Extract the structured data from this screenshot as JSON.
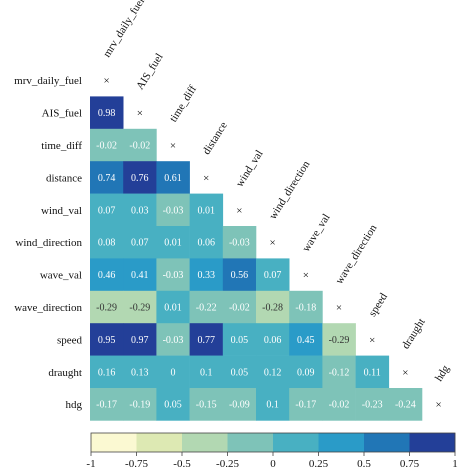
{
  "chart_data": {
    "type": "heatmap",
    "variables": [
      "mrv_daily_fuel",
      "AIS_fuel",
      "time_diff",
      "distance",
      "wind_val",
      "wind_direction",
      "wave_val",
      "wave_direction",
      "speed",
      "draught",
      "hdg"
    ],
    "lower_triangle": [
      [],
      [
        0.98
      ],
      [
        -0.02,
        -0.02
      ],
      [
        0.74,
        0.76,
        0.61
      ],
      [
        0.07,
        0.03,
        -0.03,
        0.01
      ],
      [
        0.08,
        0.07,
        0.01,
        0.06,
        -0.03
      ],
      [
        0.46,
        0.41,
        -0.03,
        0.33,
        0.56,
        0.07
      ],
      [
        -0.29,
        -0.29,
        0.01,
        -0.22,
        -0.02,
        -0.28,
        -0.18
      ],
      [
        0.95,
        0.97,
        -0.03,
        0.77,
        0.05,
        0.06,
        0.45,
        -0.29
      ],
      [
        0.16,
        0.13,
        0,
        0.1,
        0.05,
        0.12,
        0.09,
        -0.12,
        0.11
      ],
      [
        -0.17,
        -0.19,
        0.05,
        -0.15,
        -0.09,
        0.1,
        -0.17,
        -0.02,
        -0.23,
        -0.24
      ]
    ],
    "diagonal_marker": "×",
    "colorbar": {
      "ticks": [
        "-1",
        "-0.75",
        "-0.5",
        "-0.25",
        "0",
        "0.25",
        "0.5",
        "0.75",
        "1"
      ],
      "range": [
        -1,
        1
      ],
      "colors": [
        "#fbf9d2",
        "#dde9b3",
        "#b2d8b2",
        "#7ec3b8",
        "#48b0c2",
        "#2a9bc8",
        "#2176b6",
        "#233f98"
      ],
      "position": "bottom"
    }
  }
}
